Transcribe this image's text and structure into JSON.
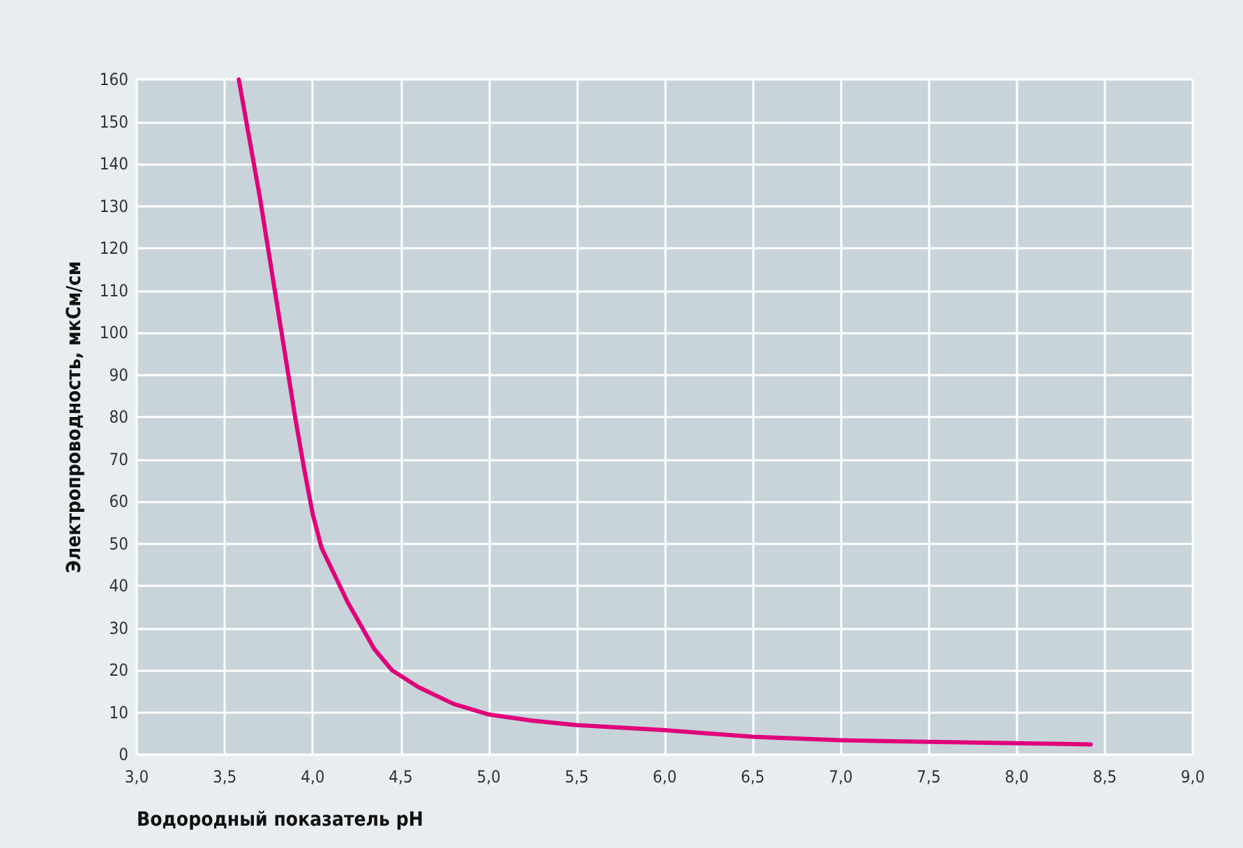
{
  "chart_data": {
    "type": "line",
    "xlabel": "Водородный показатель pH",
    "ylabel": "Электропроводность, мкСм/см",
    "x": [
      3.58,
      3.7,
      3.8,
      3.9,
      3.95,
      4.0,
      4.05,
      4.2,
      4.35,
      4.45,
      4.6,
      4.8,
      5.0,
      5.25,
      5.5,
      6.0,
      6.5,
      7.0,
      7.5,
      8.0,
      8.42
    ],
    "series": [
      {
        "color": "#e0007a",
        "values": [
          160,
          132,
          106,
          80,
          68,
          57,
          49,
          36,
          25,
          20,
          16,
          12,
          9.5,
          8,
          7,
          5.8,
          4.2,
          3.4,
          3.0,
          2.7,
          2.4
        ]
      }
    ],
    "xlim": [
      3,
      9
    ],
    "xticks": [
      {
        "value": 3,
        "label": "3,0"
      },
      {
        "value": 3.5,
        "label": "3,5"
      },
      {
        "value": 4,
        "label": "4,0"
      },
      {
        "value": 4.5,
        "label": "4,5"
      },
      {
        "value": 5,
        "label": "5,0"
      },
      {
        "value": 5.5,
        "label": "5,5"
      },
      {
        "value": 6,
        "label": "6,0"
      },
      {
        "value": 6.5,
        "label": "6,5"
      },
      {
        "value": 7,
        "label": "7,0"
      },
      {
        "value": 7.5,
        "label": "7,5"
      },
      {
        "value": 8,
        "label": "8,0"
      },
      {
        "value": 8.5,
        "label": "8,5"
      },
      {
        "value": 9,
        "label": "9,0"
      }
    ],
    "ylim": [
      0,
      160
    ],
    "yticks": [
      0,
      10,
      20,
      30,
      40,
      50,
      60,
      70,
      80,
      90,
      100,
      110,
      120,
      130,
      140,
      150,
      160
    ],
    "grid": true,
    "marker": "none",
    "line_style": "solid"
  }
}
